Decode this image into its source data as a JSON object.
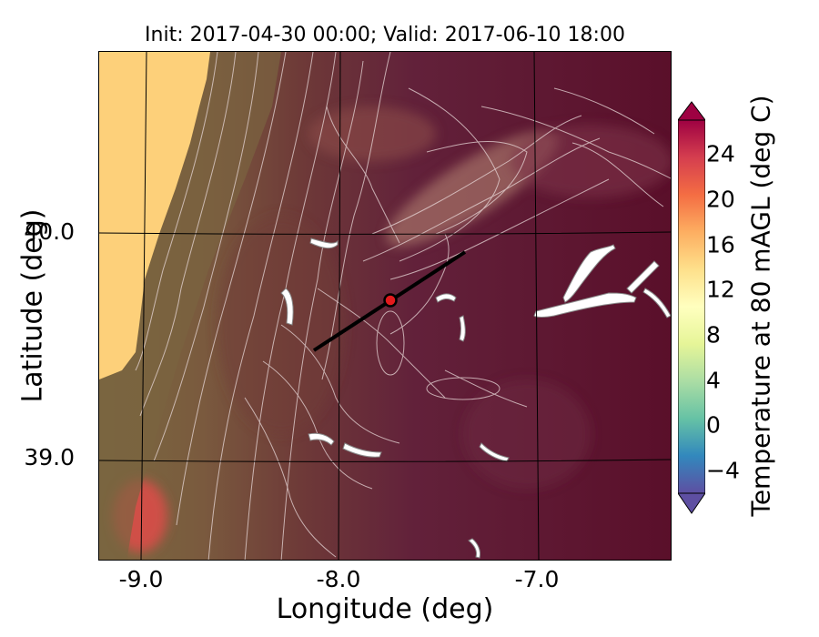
{
  "title": "Init: 2017-04-30 00:00; Valid: 2017-06-10 18:00",
  "xlabel": "Longitude (deg)",
  "ylabel": "Latitude (deg)",
  "x_ticks": [
    {
      "label": "-9.0",
      "value": -9.0
    },
    {
      "label": "-8.0",
      "value": -8.0
    },
    {
      "label": "-7.0",
      "value": -7.0
    }
  ],
  "y_ticks": [
    {
      "label": "40.0",
      "value": 40.0
    },
    {
      "label": "39.0",
      "value": 39.0
    }
  ],
  "colorbar": {
    "label": "Temperature at 80 mAGL (deg C)",
    "range": [
      -6,
      27
    ],
    "extend": "both",
    "ticks": [
      "−4",
      "0",
      "4",
      "8",
      "12",
      "16",
      "20",
      "24"
    ],
    "tick_values": [
      -4,
      0,
      4,
      8,
      12,
      16,
      20,
      24
    ],
    "colors": [
      "#5e4fa2",
      "#3288bd",
      "#66c2a5",
      "#abdda4",
      "#e6f598",
      "#ffffbf",
      "#fee08b",
      "#fdae61",
      "#f46d43",
      "#d53e4f",
      "#9e0142"
    ]
  },
  "map": {
    "colormap": "Spectral_r",
    "overlay": "terrain elevation contours (white)",
    "ocean_color": "#fdd07a",
    "domain_color": "#5c0f2a",
    "marker": {
      "lon": -7.75,
      "lat": 39.7,
      "color": "#e31a1c"
    },
    "transect": {
      "start": {
        "lon": -8.15,
        "lat": 39.47
      },
      "end": {
        "lon": -7.38,
        "lat": 39.93
      }
    }
  }
}
